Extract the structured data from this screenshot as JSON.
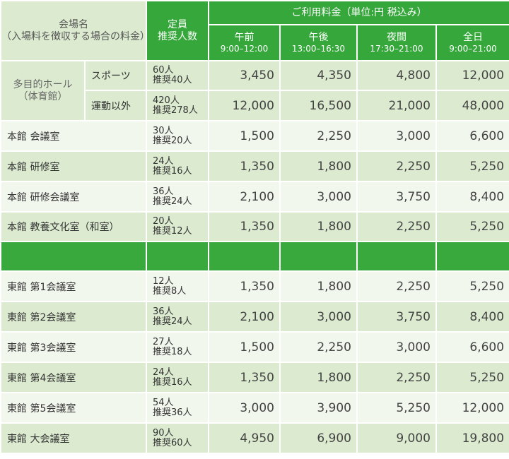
{
  "header": {
    "venue_title": "会場名",
    "venue_note": "（入場料を徴収する場合の料金）",
    "capacity_title": "定員",
    "capacity_note": "推奨人数",
    "fee_title": "ご利用料金（単位:円 税込み）",
    "periods": [
      {
        "label": "午前",
        "hours": "9:00–12:00"
      },
      {
        "label": "午後",
        "hours": "13:00–16:30"
      },
      {
        "label": "夜間",
        "hours": "17:30–21:00"
      },
      {
        "label": "全日",
        "hours": "9:00–21:00"
      }
    ]
  },
  "group_hall": {
    "name": "多目的ホール",
    "name_note": "（体育館）"
  },
  "rows_main": [
    {
      "name": "スポーツ",
      "capacity": "60人",
      "recommended": "推奨40人",
      "prices": [
        "3,450",
        "4,350",
        "4,800",
        "12,000"
      ]
    },
    {
      "name": "運動以外",
      "capacity": "420人",
      "recommended": "推奨278人",
      "prices": [
        "12,000",
        "16,500",
        "21,000",
        "48,000"
      ]
    },
    {
      "name": "本館 会議室",
      "capacity": "30人",
      "recommended": "推奨20人",
      "prices": [
        "1,500",
        "2,250",
        "3,000",
        "6,600"
      ]
    },
    {
      "name": "本館 研修室",
      "capacity": "24人",
      "recommended": "推奨16人",
      "prices": [
        "1,350",
        "1,800",
        "2,250",
        "5,250"
      ]
    },
    {
      "name": "本館 研修会議室",
      "capacity": "36人",
      "recommended": "推奨24人",
      "prices": [
        "2,100",
        "3,000",
        "3,750",
        "8,400"
      ]
    },
    {
      "name": "本館 教養文化室（和室）",
      "capacity": "20人",
      "recommended": "推奨12人",
      "prices": [
        "1,350",
        "1,800",
        "2,250",
        "5,250"
      ]
    }
  ],
  "rows_east": [
    {
      "name": "東館 第1会議室",
      "capacity": "12人",
      "recommended": "推奨8人",
      "prices": [
        "1,350",
        "1,800",
        "2,250",
        "5,250"
      ]
    },
    {
      "name": "東館 第2会議室",
      "capacity": "36人",
      "recommended": "推奨24人",
      "prices": [
        "2,100",
        "3,000",
        "3,750",
        "8,400"
      ]
    },
    {
      "name": "東館 第3会議室",
      "capacity": "27人",
      "recommended": "推奨18人",
      "prices": [
        "1,500",
        "2,250",
        "3,000",
        "6,600"
      ]
    },
    {
      "name": "東館 第4会議室",
      "capacity": "24人",
      "recommended": "推奨16人",
      "prices": [
        "1,350",
        "1,800",
        "2,250",
        "5,250"
      ]
    },
    {
      "name": "東館 第5会議室",
      "capacity": "54人",
      "recommended": "推奨36人",
      "prices": [
        "3,000",
        "3,900",
        "5,250",
        "12,000"
      ]
    },
    {
      "name": "東館 大会議室",
      "capacity": "90人",
      "recommended": "推奨60人",
      "prices": [
        "4,950",
        "6,900",
        "9,000",
        "19,800"
      ]
    }
  ]
}
